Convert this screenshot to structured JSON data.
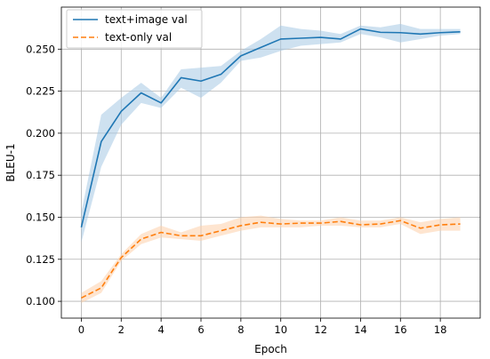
{
  "chart_data": {
    "type": "line",
    "title": "",
    "xlabel": "Epoch",
    "ylabel": "BLEU-1",
    "xlim": [
      -1,
      20
    ],
    "ylim": [
      0.09,
      0.275
    ],
    "xticks": [
      0,
      2,
      4,
      6,
      8,
      10,
      12,
      14,
      16,
      18
    ],
    "xtick_labels": [
      "0",
      "2",
      "4",
      "6",
      "8",
      "10",
      "12",
      "14",
      "16",
      "18"
    ],
    "yticks": [
      0.1,
      0.125,
      0.15,
      0.175,
      0.2,
      0.225,
      0.25
    ],
    "ytick_labels": [
      "0.100",
      "0.125",
      "0.150",
      "0.175",
      "0.200",
      "0.225",
      "0.250"
    ],
    "grid": true,
    "legend_position": "top-left",
    "x": [
      0,
      1,
      2,
      3,
      4,
      5,
      6,
      7,
      8,
      9,
      10,
      11,
      12,
      13,
      14,
      15,
      16,
      17,
      18,
      19
    ],
    "series": [
      {
        "name": "text+image val",
        "color": "#1f77b4",
        "band_color": "#a6c8e4",
        "line_style": "solid",
        "values": [
          0.144,
          0.195,
          0.213,
          0.224,
          0.218,
          0.233,
          0.231,
          0.235,
          0.246,
          0.251,
          0.256,
          0.2565,
          0.257,
          0.256,
          0.262,
          0.26,
          0.2598,
          0.259,
          0.2598,
          0.2603
        ],
        "lower": [
          0.135,
          0.18,
          0.205,
          0.218,
          0.215,
          0.227,
          0.221,
          0.23,
          0.243,
          0.245,
          0.249,
          0.252,
          0.253,
          0.254,
          0.259,
          0.257,
          0.254,
          0.256,
          0.258,
          0.259
        ],
        "upper": [
          0.153,
          0.211,
          0.221,
          0.23,
          0.221,
          0.238,
          0.239,
          0.24,
          0.249,
          0.256,
          0.264,
          0.262,
          0.261,
          0.259,
          0.264,
          0.263,
          0.265,
          0.262,
          0.262,
          0.262
        ]
      },
      {
        "name": "text-only val",
        "color": "#ff7f0e",
        "band_color": "#fdd0a9",
        "line_style": "dashed",
        "values": [
          0.102,
          0.108,
          0.126,
          0.137,
          0.141,
          0.139,
          0.139,
          0.142,
          0.145,
          0.147,
          0.146,
          0.1465,
          0.1465,
          0.1475,
          0.1455,
          0.146,
          0.148,
          0.1435,
          0.1455,
          0.146
        ],
        "lower": [
          0.099,
          0.105,
          0.124,
          0.134,
          0.138,
          0.137,
          0.136,
          0.139,
          0.142,
          0.144,
          0.144,
          0.144,
          0.145,
          0.145,
          0.144,
          0.144,
          0.146,
          0.14,
          0.142,
          0.142
        ],
        "upper": [
          0.105,
          0.112,
          0.128,
          0.14,
          0.145,
          0.141,
          0.145,
          0.146,
          0.15,
          0.151,
          0.149,
          0.148,
          0.148,
          0.15,
          0.148,
          0.148,
          0.15,
          0.147,
          0.149,
          0.15
        ]
      }
    ]
  }
}
